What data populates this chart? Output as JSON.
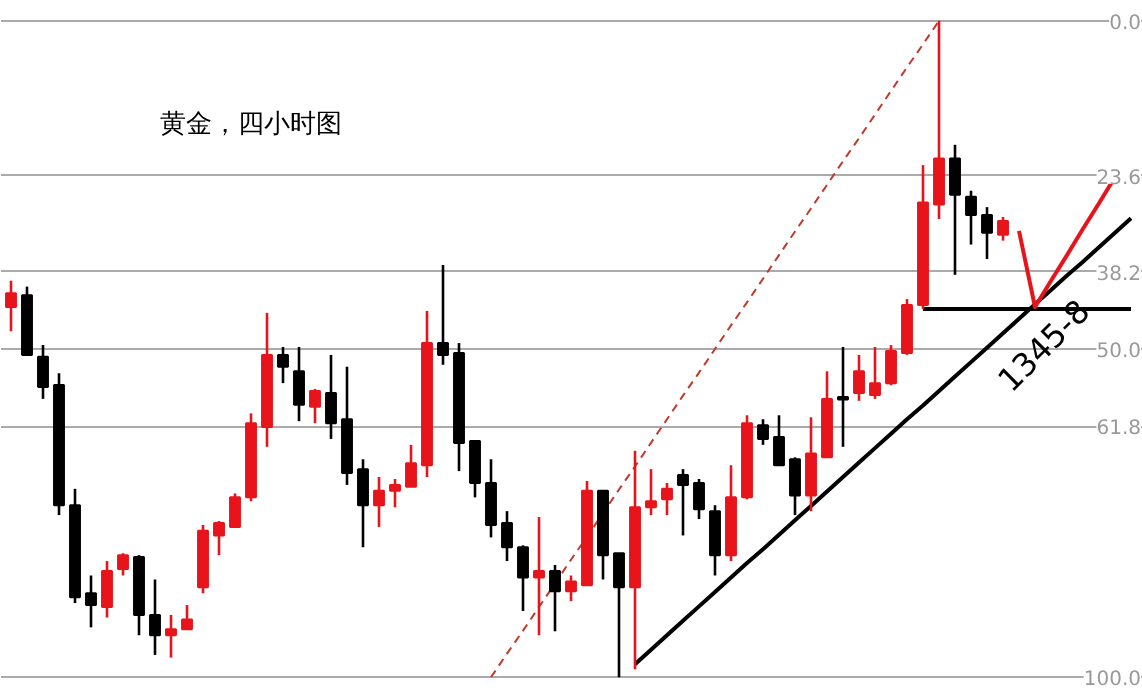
{
  "chart_data": {
    "type": "candlestick",
    "title": "黄金，四小时图",
    "categories": [
      null,
      null,
      null,
      null,
      null,
      null,
      null,
      null,
      null,
      null,
      null,
      null,
      null,
      null,
      null,
      null,
      null,
      null,
      null,
      null,
      null,
      null,
      null,
      null,
      null,
      null,
      null,
      null,
      null,
      null,
      null,
      null,
      null,
      null,
      null,
      null,
      null,
      null,
      null,
      null,
      null,
      null,
      null,
      null,
      null,
      null,
      null,
      null,
      null,
      null,
      null,
      null,
      null,
      null,
      null,
      null,
      null,
      null,
      null,
      null,
      null,
      null,
      null,
      null,
      null,
      null,
      null,
      null,
      null,
      null,
      null
    ],
    "tick_labels": "y",
    "ohlc": [
      [
        43.6,
        47.3,
        39.6,
        41.5
      ],
      [
        41.8,
        50.9,
        40.5,
        50.9
      ],
      [
        51.2,
        57.6,
        49.4,
        55.8
      ],
      [
        55.5,
        75.3,
        53.7,
        73.8
      ],
      [
        73.8,
        88.7,
        71.3,
        87.8
      ],
      [
        87.2,
        92.4,
        84.5,
        89.0
      ],
      [
        89.3,
        90.9,
        82.3,
        83.8
      ],
      [
        83.5,
        84.5,
        81.1,
        81.4
      ],
      [
        81.7,
        93.6,
        81.4,
        90.5
      ],
      [
        90.5,
        96.6,
        85.1,
        93.6
      ],
      [
        93.6,
        97.0,
        90.5,
        92.7
      ],
      [
        92.7,
        92.7,
        89.0,
        91.2
      ],
      [
        86.3,
        87.2,
        76.8,
        77.7
      ],
      [
        78.4,
        81.4,
        76.2,
        76.5
      ],
      [
        77.1,
        77.1,
        72.0,
        72.6
      ],
      [
        72.6,
        73.2,
        59.8,
        61.3
      ],
      [
        61.9,
        64.9,
        44.5,
        50.9
      ],
      [
        50.9,
        55.2,
        49.7,
        52.7
      ],
      [
        53.4,
        61.0,
        49.7,
        58.5
      ],
      [
        58.8,
        61.3,
        56.1,
        56.4
      ],
      [
        56.7,
        63.7,
        50.9,
        61.3
      ],
      [
        60.7,
        70.7,
        52.7,
        68.9
      ],
      [
        68.3,
        80.2,
        66.8,
        73.8
      ],
      [
        73.8,
        77.1,
        69.5,
        71.6
      ],
      [
        71.6,
        74.1,
        69.8,
        70.7
      ],
      [
        71.0,
        71.0,
        64.6,
        67.4
      ],
      [
        67.7,
        69.5,
        44.2,
        49.1
      ],
      [
        49.1,
        52.4,
        37.2,
        50.9
      ],
      [
        50.6,
        68.6,
        49.1,
        64.3
      ],
      [
        64.0,
        72.6,
        64.0,
        70.4
      ],
      [
        70.4,
        78.7,
        66.8,
        76.8
      ],
      [
        76.5,
        82.3,
        74.7,
        80.2
      ],
      [
        80.2,
        89.9,
        79.9,
        84.8
      ],
      [
        84.8,
        93.6,
        75.6,
        83.8
      ],
      [
        83.8,
        93.0,
        82.9,
        86.9
      ],
      [
        86.9,
        88.4,
        84.5,
        85.4
      ],
      [
        86.0,
        86.0,
        70.1,
        71.6
      ],
      [
        71.6,
        85.1,
        71.6,
        81.4
      ],
      [
        81.1,
        100.0,
        81.1,
        86.3
      ],
      [
        86.3,
        98.8,
        65.5,
        74.1
      ],
      [
        74.1,
        75.3,
        68.3,
        73.2
      ],
      [
        72.9,
        75.3,
        70.4,
        71.3
      ],
      [
        69.2,
        78.4,
        68.3,
        70.7
      ],
      [
        70.4,
        75.9,
        69.8,
        74.4
      ],
      [
        74.7,
        84.5,
        73.8,
        81.4
      ],
      [
        81.4,
        82.3,
        67.7,
        72.6
      ],
      [
        72.6,
        72.9,
        60.1,
        61.3
      ],
      [
        61.6,
        64.6,
        60.7,
        63.7
      ],
      [
        63.4,
        67.7,
        60.1,
        67.7
      ],
      [
        66.8,
        75.3,
        66.5,
        72.3
      ],
      [
        72.3,
        74.7,
        60.4,
        65.9
      ],
      [
        66.5,
        66.5,
        53.4,
        57.6
      ],
      [
        57.3,
        64.9,
        49.7,
        57.6
      ],
      [
        56.7,
        57.9,
        50.9,
        53.4
      ],
      [
        57.0,
        57.6,
        49.7,
        55.2
      ],
      [
        55.2,
        55.5,
        49.4,
        50.3
      ],
      [
        50.6,
        50.9,
        42.4,
        43.3
      ],
      [
        43.3,
        43.9,
        22.0,
        27.7
      ],
      [
        28.0,
        30.2,
        0.0,
        21.0
      ],
      [
        21.0,
        38.7,
        18.9,
        26.5
      ],
      [
        26.8,
        34.1,
        25.9,
        29.6
      ],
      [
        29.6,
        36.3,
        28.4,
        32.3
      ],
      [
        32.6,
        33.5,
        29.9,
        30.5
      ],
      null,
      null,
      null,
      null,
      null,
      null,
      null,
      null
    ],
    "colors": [
      "#e8141c",
      "#000000",
      "#000000",
      "#000000",
      "#000000",
      "#000000",
      "#e8141c",
      "#e8141c",
      "#000000",
      "#000000",
      "#e8141c",
      "#e8141c",
      "#e8141c",
      "#e8141c",
      "#e8141c",
      "#e8141c",
      "#e8141c",
      "#000000",
      "#000000",
      "#e8141c",
      "#000000",
      "#000000",
      "#000000",
      "#e8141c",
      "#e8141c",
      "#e8141c",
      "#e8141c",
      "#000000",
      "#000000",
      "#000000",
      "#000000",
      "#000000",
      "#000000",
      "#e8141c",
      "#000000",
      "#e8141c",
      "#e8141c",
      "#000000",
      "#000000",
      "#e8141c",
      "#e8141c",
      "#e8141c",
      "#000000",
      "#000000",
      "#000000",
      "#e8141c",
      "#e8141c",
      "#000000",
      "#000000",
      "#000000",
      "#e8141c",
      "#e8141c",
      "#000000",
      "#e8141c",
      "#e8141c",
      "#e8141c",
      "#e8141c",
      "#e8141c",
      "#e8141c",
      "#000000",
      "#000000",
      "#000000",
      "#e8141c",
      null,
      null,
      null,
      null,
      null,
      null,
      null,
      null
    ],
    "series": [
      {
        "type": "line",
        "color": "#c0392b",
        "line_style": "dashed",
        "values": [
          null,
          null,
          null,
          null,
          null,
          null,
          null,
          null,
          null,
          null,
          null,
          null,
          null,
          null,
          null,
          null,
          null,
          null,
          null,
          null,
          null,
          null,
          null,
          null,
          null,
          null,
          null,
          null,
          null,
          null,
          100.0,
          96.4,
          92.9,
          89.3,
          85.7,
          82.1,
          78.6,
          75.0,
          71.4,
          67.9,
          64.3,
          60.7,
          57.1,
          53.6,
          50.0,
          46.4,
          42.9,
          39.3,
          35.7,
          32.1,
          28.6,
          25.0,
          21.4,
          17.9,
          14.3,
          10.7,
          7.1,
          3.6,
          0.0,
          null,
          null,
          null,
          null,
          null,
          null,
          null,
          null,
          null,
          null,
          null,
          null
        ]
      },
      {
        "type": "line",
        "color": "#000000",
        "line_style": "solid",
        "values": [
          null,
          null,
          null,
          null,
          null,
          null,
          null,
          null,
          null,
          null,
          null,
          null,
          null,
          null,
          null,
          null,
          null,
          null,
          null,
          null,
          null,
          null,
          null,
          null,
          null,
          null,
          null,
          null,
          null,
          null,
          null,
          null,
          null,
          null,
          null,
          null,
          null,
          null,
          null,
          98.0,
          95.8,
          93.6,
          91.4,
          89.2,
          87.0,
          84.8,
          82.6,
          80.5,
          78.3,
          76.1,
          73.9,
          71.7,
          69.5,
          67.3,
          65.1,
          62.9,
          60.7,
          58.6,
          56.4,
          54.2,
          52.0,
          49.8,
          47.6,
          45.4,
          43.2,
          41.0,
          38.8,
          36.7,
          34.5,
          32.3,
          30.1
        ]
      },
      {
        "type": "line",
        "color": "#000000",
        "line_style": "solid",
        "values": [
          null,
          null,
          null,
          null,
          null,
          null,
          null,
          null,
          null,
          null,
          null,
          null,
          null,
          null,
          null,
          null,
          null,
          null,
          null,
          null,
          null,
          null,
          null,
          null,
          null,
          null,
          null,
          null,
          null,
          null,
          null,
          null,
          null,
          null,
          null,
          null,
          null,
          null,
          null,
          null,
          null,
          null,
          null,
          null,
          null,
          null,
          null,
          null,
          null,
          null,
          null,
          null,
          null,
          null,
          null,
          null,
          null,
          43.9,
          43.9,
          43.9,
          43.9,
          43.9,
          43.9,
          43.9,
          43.9,
          43.9,
          43.9,
          43.9,
          43.9,
          43.9,
          43.9
        ]
      },
      {
        "type": "line",
        "color": "#e8141c",
        "line_style": "solid",
        "values": [
          null,
          null,
          null,
          null,
          null,
          null,
          null,
          null,
          null,
          null,
          null,
          null,
          null,
          null,
          null,
          null,
          null,
          null,
          null,
          null,
          null,
          null,
          null,
          null,
          null,
          null,
          null,
          null,
          null,
          null,
          null,
          null,
          null,
          null,
          null,
          null,
          null,
          null,
          null,
          null,
          null,
          null,
          null,
          null,
          null,
          null,
          null,
          null,
          null,
          null,
          null,
          null,
          null,
          null,
          null,
          null,
          null,
          null,
          null,
          null,
          null,
          null,
          null,
          32.0,
          43.6,
          39.6,
          35.7,
          31.7,
          27.8,
          23.8,
          null
        ]
      }
    ],
    "annotations": [
      "1345-8"
    ],
    "ylim": [
      102.7,
      -3.0
    ],
    "yticks": [
      {
        "value": 0,
        "label": "0.0"
      },
      23.6,
      38.2,
      {
        "value": 50,
        "label": "50.0"
      },
      61.8,
      {
        "value": 100,
        "label": "100.0"
      }
    ],
    "grid": "y"
  }
}
